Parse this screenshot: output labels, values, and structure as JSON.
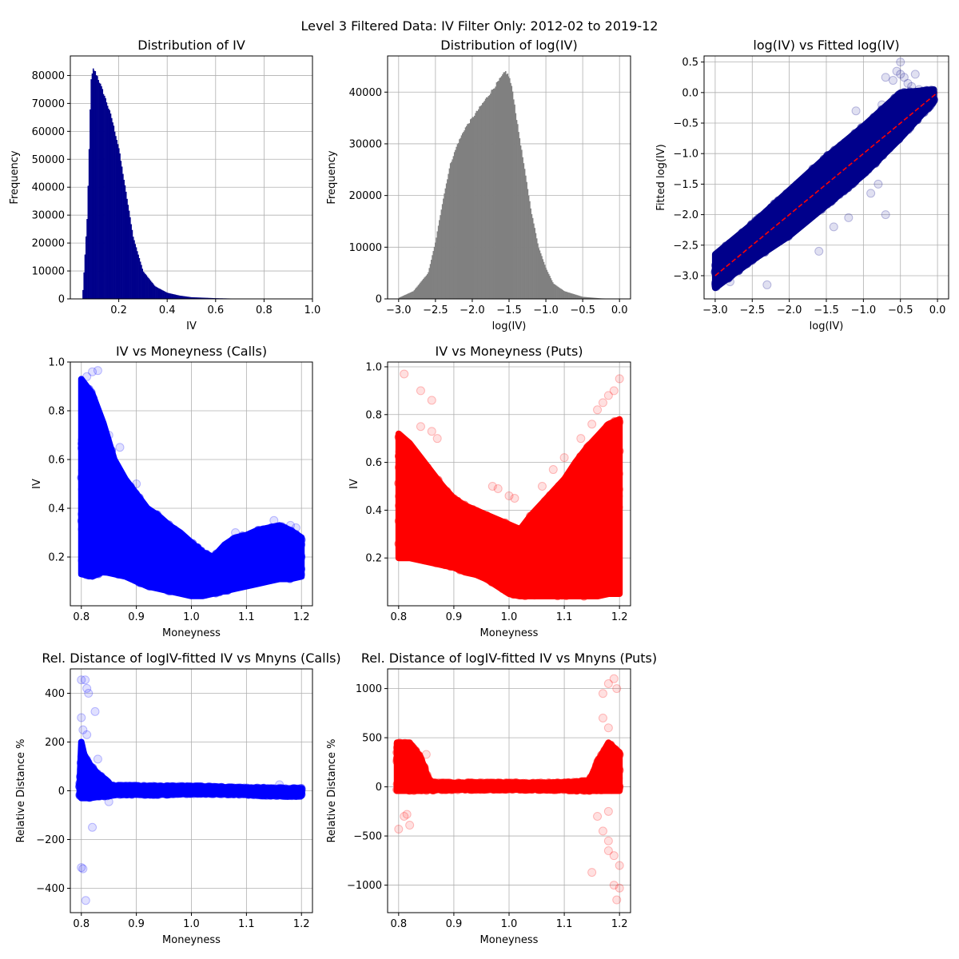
{
  "figure": {
    "title": "Level 3 Filtered Data: IV Filter Only: 2012-02 to 2019-12"
  },
  "colors": {
    "navy": "#00008b",
    "gray": "#808080",
    "blue": "#0000ff",
    "red": "#ff0000",
    "fit_line": "#ff0000",
    "grid": "#b0b0b0"
  },
  "chart_data": [
    {
      "id": "p1",
      "type": "bar",
      "title": "Distribution of IV",
      "xlabel": "IV",
      "ylabel": "Frequency",
      "color": "navy",
      "xlim": [
        0.0,
        1.0
      ],
      "ylim": [
        0,
        87000
      ],
      "xticks": [
        0.2,
        0.4,
        0.6,
        0.8,
        1.0
      ],
      "yticks": [
        0,
        10000,
        20000,
        30000,
        40000,
        50000,
        60000,
        70000,
        80000
      ],
      "xtick_labels": [
        "0.2",
        "0.4",
        "0.6",
        "0.8",
        "1.0"
      ],
      "ytick_labels": [
        "0",
        "10000",
        "20000",
        "30000",
        "40000",
        "50000",
        "60000",
        "70000",
        "80000"
      ],
      "hist_shape": [
        [
          0.05,
          0
        ],
        [
          0.07,
          30000
        ],
        [
          0.085,
          78000
        ],
        [
          0.095,
          82500
        ],
        [
          0.11,
          80000
        ],
        [
          0.14,
          73000
        ],
        [
          0.17,
          65000
        ],
        [
          0.2,
          54000
        ],
        [
          0.23,
          38000
        ],
        [
          0.26,
          22000
        ],
        [
          0.3,
          10000
        ],
        [
          0.35,
          4500
        ],
        [
          0.4,
          2200
        ],
        [
          0.45,
          1200
        ],
        [
          0.5,
          600
        ],
        [
          0.6,
          250
        ],
        [
          0.7,
          80
        ],
        [
          0.8,
          20
        ],
        [
          0.9,
          5
        ],
        [
          0.98,
          0
        ]
      ]
    },
    {
      "id": "p2",
      "type": "bar",
      "title": "Distribution of log(IV)",
      "xlabel": "log(IV)",
      "ylabel": "Frequency",
      "color": "gray",
      "xlim": [
        -3.15,
        0.15
      ],
      "ylim": [
        0,
        47000
      ],
      "xticks": [
        -3.0,
        -2.5,
        -2.0,
        -1.5,
        -1.0,
        -0.5,
        0.0
      ],
      "yticks": [
        0,
        10000,
        20000,
        30000,
        40000
      ],
      "xtick_labels": [
        "−3.0",
        "−2.5",
        "−2.0",
        "−1.5",
        "−1.0",
        "−0.5",
        "0.0"
      ],
      "ytick_labels": [
        "0",
        "10000",
        "20000",
        "30000",
        "40000"
      ],
      "hist_shape": [
        [
          -3.0,
          200
        ],
        [
          -2.8,
          1500
        ],
        [
          -2.6,
          5000
        ],
        [
          -2.5,
          11000
        ],
        [
          -2.4,
          19000
        ],
        [
          -2.3,
          26000
        ],
        [
          -2.2,
          30000
        ],
        [
          -2.1,
          33000
        ],
        [
          -2.0,
          35000
        ],
        [
          -1.9,
          37000
        ],
        [
          -1.8,
          39000
        ],
        [
          -1.7,
          41000
        ],
        [
          -1.6,
          43000
        ],
        [
          -1.55,
          44000
        ],
        [
          -1.5,
          43000
        ],
        [
          -1.45,
          40000
        ],
        [
          -1.4,
          35000
        ],
        [
          -1.3,
          26000
        ],
        [
          -1.2,
          17000
        ],
        [
          -1.1,
          10000
        ],
        [
          -1.0,
          6000
        ],
        [
          -0.9,
          3000
        ],
        [
          -0.75,
          1500
        ],
        [
          -0.5,
          400
        ],
        [
          -0.25,
          100
        ],
        [
          0.0,
          0
        ]
      ]
    },
    {
      "id": "p3",
      "type": "scatter",
      "title": "log(IV) vs Fitted log(IV)",
      "xlabel": "log(IV)",
      "ylabel": "Fitted log(IV)",
      "color": "navy",
      "xlim": [
        -3.15,
        0.15
      ],
      "ylim": [
        -3.38,
        0.6
      ],
      "xticks": [
        -3.0,
        -2.5,
        -2.0,
        -1.5,
        -1.0,
        -0.5,
        0.0
      ],
      "yticks": [
        -3.0,
        -2.5,
        -2.0,
        -1.5,
        -1.0,
        -0.5,
        0.0,
        0.5
      ],
      "xtick_labels": [
        "−3.0",
        "−2.5",
        "−2.0",
        "−1.5",
        "−1.0",
        "−0.5",
        "0.0"
      ],
      "ytick_labels": [
        "−3.0",
        "−2.5",
        "−2.0",
        "−1.5",
        "−1.0",
        "−0.5",
        "0.0",
        "0.5"
      ],
      "fit_line": [
        [
          -3.0,
          -3.0
        ],
        [
          0.0,
          0.0
        ]
      ],
      "band": [
        [
          -3.0,
          -3.2,
          -2.65
        ],
        [
          -2.5,
          -2.75,
          -2.15
        ],
        [
          -2.0,
          -2.35,
          -1.6
        ],
        [
          -1.5,
          -1.85,
          -1.05
        ],
        [
          -1.0,
          -1.35,
          -0.55
        ],
        [
          -0.5,
          -0.75,
          0.0
        ],
        [
          -0.05,
          -0.15,
          0.05
        ]
      ],
      "outliers": [
        [
          -0.5,
          0.3
        ],
        [
          -0.6,
          0.2
        ],
        [
          -0.45,
          0.25
        ],
        [
          -0.55,
          0.35
        ],
        [
          -0.4,
          0.15
        ],
        [
          -0.5,
          0.5
        ],
        [
          -0.35,
          0.1
        ],
        [
          -0.7,
          0.25
        ],
        [
          -0.3,
          0.3
        ],
        [
          -0.25,
          0.05
        ],
        [
          -0.75,
          -0.2
        ],
        [
          -0.8,
          -1.5
        ],
        [
          -1.2,
          -2.05
        ],
        [
          -1.6,
          -2.6
        ],
        [
          -2.3,
          -3.15
        ],
        [
          -0.9,
          -1.65
        ],
        [
          -2.8,
          -3.1
        ],
        [
          -1.1,
          -0.3
        ],
        [
          -0.7,
          -2.0
        ],
        [
          -1.4,
          -2.2
        ]
      ]
    },
    {
      "id": "p4",
      "type": "scatter",
      "title": "IV vs Moneyness (Calls)",
      "xlabel": "Moneyness",
      "ylabel": "IV",
      "color": "blue",
      "xlim": [
        0.78,
        1.22
      ],
      "ylim": [
        0.0,
        1.0
      ],
      "xticks": [
        0.8,
        0.9,
        1.0,
        1.1,
        1.2
      ],
      "yticks": [
        0.2,
        0.4,
        0.6,
        0.8,
        1.0
      ],
      "xtick_labels": [
        "0.8",
        "0.9",
        "1.0",
        "1.1",
        "1.2"
      ],
      "ytick_labels": [
        "0.2",
        "0.4",
        "0.6",
        "0.8",
        "1.0"
      ],
      "band": [
        [
          0.8,
          0.13,
          0.93
        ],
        [
          0.82,
          0.12,
          0.87
        ],
        [
          0.84,
          0.14,
          0.75
        ],
        [
          0.86,
          0.13,
          0.6
        ],
        [
          0.88,
          0.12,
          0.52
        ],
        [
          0.9,
          0.1,
          0.46
        ],
        [
          0.92,
          0.08,
          0.4
        ],
        [
          0.94,
          0.07,
          0.37
        ],
        [
          0.96,
          0.06,
          0.33
        ],
        [
          0.98,
          0.05,
          0.3
        ],
        [
          1.0,
          0.04,
          0.26
        ],
        [
          1.02,
          0.04,
          0.22
        ],
        [
          1.04,
          0.05,
          0.2
        ],
        [
          1.06,
          0.06,
          0.25
        ],
        [
          1.08,
          0.07,
          0.28
        ],
        [
          1.1,
          0.08,
          0.29
        ],
        [
          1.12,
          0.09,
          0.31
        ],
        [
          1.14,
          0.1,
          0.32
        ],
        [
          1.16,
          0.11,
          0.33
        ],
        [
          1.18,
          0.11,
          0.31
        ],
        [
          1.2,
          0.12,
          0.28
        ]
      ],
      "outliers": [
        [
          0.82,
          0.96
        ],
        [
          0.83,
          0.965
        ],
        [
          0.81,
          0.94
        ],
        [
          0.85,
          0.7
        ],
        [
          0.87,
          0.65
        ],
        [
          0.9,
          0.5
        ],
        [
          1.08,
          0.3
        ],
        [
          1.15,
          0.35
        ],
        [
          1.18,
          0.33
        ],
        [
          1.19,
          0.32
        ]
      ]
    },
    {
      "id": "p5",
      "type": "scatter",
      "title": "IV vs Moneyness (Puts)",
      "xlabel": "Moneyness",
      "ylabel": "IV",
      "color": "red",
      "xlim": [
        0.78,
        1.22
      ],
      "ylim": [
        0.0,
        1.02
      ],
      "xticks": [
        0.8,
        0.9,
        1.0,
        1.1,
        1.2
      ],
      "yticks": [
        0.2,
        0.4,
        0.6,
        0.8,
        1.0
      ],
      "xtick_labels": [
        "0.8",
        "0.9",
        "1.0",
        "1.1",
        "1.2"
      ],
      "ytick_labels": [
        "0.2",
        "0.4",
        "0.6",
        "0.8",
        "1.0"
      ],
      "band": [
        [
          0.8,
          0.2,
          0.72
        ],
        [
          0.82,
          0.2,
          0.68
        ],
        [
          0.84,
          0.19,
          0.62
        ],
        [
          0.86,
          0.18,
          0.56
        ],
        [
          0.88,
          0.17,
          0.5
        ],
        [
          0.9,
          0.16,
          0.45
        ],
        [
          0.92,
          0.14,
          0.42
        ],
        [
          0.94,
          0.13,
          0.4
        ],
        [
          0.96,
          0.11,
          0.38
        ],
        [
          0.98,
          0.08,
          0.36
        ],
        [
          1.0,
          0.05,
          0.34
        ],
        [
          1.02,
          0.04,
          0.32
        ],
        [
          1.04,
          0.04,
          0.38
        ],
        [
          1.06,
          0.04,
          0.43
        ],
        [
          1.08,
          0.04,
          0.48
        ],
        [
          1.1,
          0.04,
          0.53
        ],
        [
          1.12,
          0.04,
          0.6
        ],
        [
          1.14,
          0.04,
          0.66
        ],
        [
          1.16,
          0.04,
          0.71
        ],
        [
          1.18,
          0.05,
          0.76
        ],
        [
          1.2,
          0.05,
          0.78
        ]
      ],
      "outliers": [
        [
          0.81,
          0.97
        ],
        [
          0.84,
          0.9
        ],
        [
          0.86,
          0.86
        ],
        [
          0.84,
          0.75
        ],
        [
          0.87,
          0.7
        ],
        [
          0.86,
          0.73
        ],
        [
          0.97,
          0.5
        ],
        [
          0.98,
          0.49
        ],
        [
          1.0,
          0.46
        ],
        [
          1.01,
          0.45
        ],
        [
          1.06,
          0.5
        ],
        [
          1.08,
          0.57
        ],
        [
          1.1,
          0.62
        ],
        [
          1.13,
          0.7
        ],
        [
          1.15,
          0.76
        ],
        [
          1.17,
          0.85
        ],
        [
          1.19,
          0.9
        ],
        [
          1.2,
          0.95
        ],
        [
          1.18,
          0.88
        ],
        [
          1.16,
          0.82
        ]
      ]
    },
    {
      "id": "p6",
      "type": "scatter",
      "title": "Rel. Distance of logIV-fitted IV vs Mnyns (Calls)",
      "xlabel": "Moneyness",
      "ylabel": "Relative Distance %",
      "color": "blue",
      "xlim": [
        0.78,
        1.22
      ],
      "ylim": [
        -500,
        500
      ],
      "xticks": [
        0.8,
        0.9,
        1.0,
        1.1,
        1.2
      ],
      "yticks": [
        -400,
        -200,
        0,
        200,
        400
      ],
      "xtick_labels": [
        "0.8",
        "0.9",
        "1.0",
        "1.1",
        "1.2"
      ],
      "ytick_labels": [
        "−400",
        "−200",
        "0",
        "200",
        "400"
      ],
      "band": [
        [
          0.797,
          -20,
          30
        ],
        [
          0.8,
          -30,
          200
        ],
        [
          0.805,
          -30,
          150
        ],
        [
          0.815,
          -30,
          110
        ],
        [
          0.83,
          -25,
          70
        ],
        [
          0.845,
          -22,
          45
        ],
        [
          0.855,
          -20,
          20
        ],
        [
          0.87,
          -15,
          20
        ],
        [
          0.95,
          -15,
          18
        ],
        [
          1.0,
          -12,
          18
        ],
        [
          1.05,
          -12,
          15
        ],
        [
          1.1,
          -15,
          12
        ],
        [
          1.15,
          -20,
          10
        ],
        [
          1.2,
          -20,
          10
        ]
      ],
      "outliers": [
        [
          0.8,
          455
        ],
        [
          0.807,
          455
        ],
        [
          0.81,
          420
        ],
        [
          0.813,
          400
        ],
        [
          0.825,
          325
        ],
        [
          0.8,
          300
        ],
        [
          0.803,
          250
        ],
        [
          0.81,
          230
        ],
        [
          0.83,
          130
        ],
        [
          0.82,
          -150
        ],
        [
          0.8,
          -315
        ],
        [
          0.803,
          -320
        ],
        [
          0.808,
          -450
        ],
        [
          0.85,
          -45
        ],
        [
          1.16,
          25
        ]
      ]
    },
    {
      "id": "p7",
      "type": "scatter",
      "title": "Rel. Distance of logIV-fitted IV vs Mnyns (Puts)",
      "xlabel": "Moneyness",
      "ylabel": "Relative Distance %",
      "color": "red",
      "xlim": [
        0.78,
        1.22
      ],
      "ylim": [
        -1280,
        1200
      ],
      "xticks": [
        0.8,
        0.9,
        1.0,
        1.1,
        1.2
      ],
      "yticks": [
        -1000,
        -500,
        0,
        500,
        1000
      ],
      "xtick_labels": [
        "0.8",
        "0.9",
        "1.0",
        "1.1",
        "1.2"
      ],
      "ytick_labels": [
        "−1000",
        "−500",
        "0",
        "500",
        "1000"
      ],
      "band": [
        [
          0.797,
          -40,
          450
        ],
        [
          0.82,
          -40,
          450
        ],
        [
          0.84,
          -40,
          300
        ],
        [
          0.855,
          -35,
          60
        ],
        [
          0.87,
          -30,
          40
        ],
        [
          1.0,
          -25,
          40
        ],
        [
          1.1,
          -30,
          40
        ],
        [
          1.145,
          -40,
          60
        ],
        [
          1.16,
          -40,
          250
        ],
        [
          1.18,
          -40,
          450
        ],
        [
          1.2,
          -40,
          350
        ]
      ],
      "outliers": [
        [
          0.8,
          -430
        ],
        [
          0.81,
          -300
        ],
        [
          0.815,
          -280
        ],
        [
          0.82,
          -390
        ],
        [
          0.85,
          330
        ],
        [
          1.17,
          950
        ],
        [
          1.18,
          1050
        ],
        [
          1.19,
          1100
        ],
        [
          1.195,
          1000
        ],
        [
          1.17,
          700
        ],
        [
          1.18,
          600
        ],
        [
          1.16,
          -300
        ],
        [
          1.17,
          -450
        ],
        [
          1.18,
          -550
        ],
        [
          1.19,
          -700
        ],
        [
          1.2,
          -800
        ],
        [
          1.18,
          -250
        ],
        [
          1.15,
          -870
        ],
        [
          1.19,
          -1000
        ],
        [
          1.195,
          -1150
        ],
        [
          1.2,
          -1030
        ],
        [
          1.18,
          -650
        ]
      ]
    }
  ]
}
